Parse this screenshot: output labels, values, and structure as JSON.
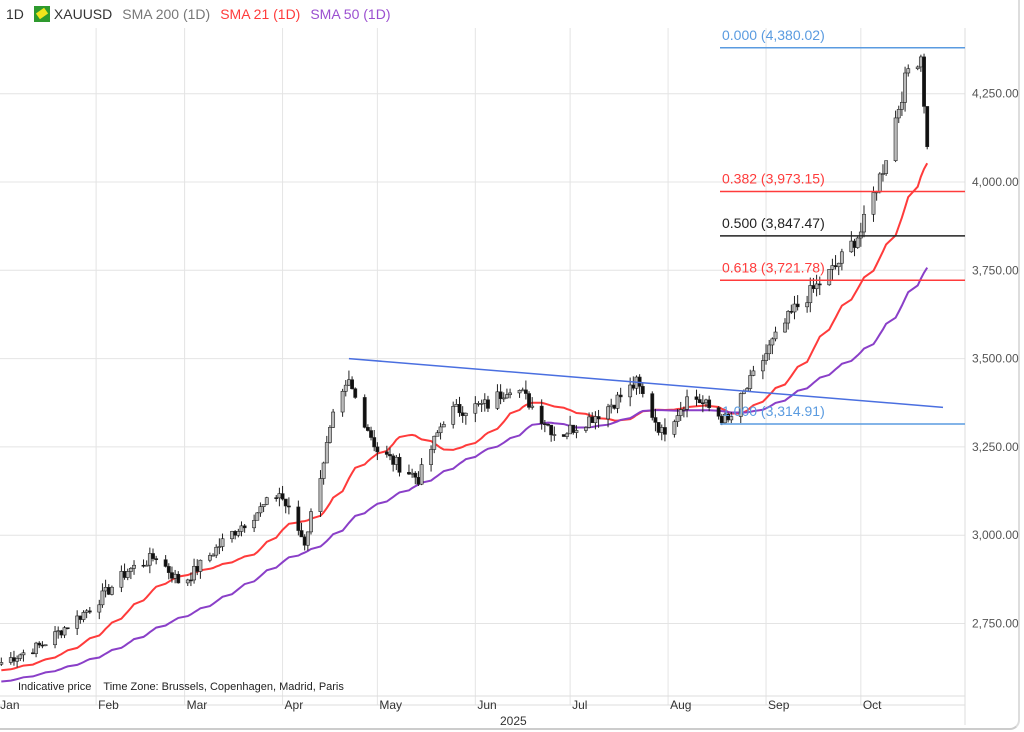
{
  "legend": {
    "interval": "1D",
    "symbol": "XAUUSD",
    "indicators": [
      {
        "label": "SMA 200 (1D)",
        "color": "#777777"
      },
      {
        "label": "SMA 21 (1D)",
        "color": "#ff3b3b"
      },
      {
        "label": "SMA 50 (1D)",
        "color": "#9b4fd0"
      }
    ]
  },
  "footer": {
    "note": "Indicative price    Time Zone: Brussels, Copenhagen, Madrid, Paris",
    "year": "2025"
  },
  "chart_data": {
    "type": "candlestick",
    "title": "XAUUSD 1D",
    "y_ticks": [
      "2,750.00",
      "3,000.00",
      "3,250.00",
      "3,500.00",
      "3,750.00",
      "4,000.00",
      "4,250.00"
    ],
    "y_tick_values": [
      2750,
      3000,
      3250,
      3500,
      3750,
      4000,
      4250
    ],
    "ylim": [
      2560,
      4420
    ],
    "x_ticks": [
      {
        "label": "Jan",
        "day": 1
      },
      {
        "label": "Feb",
        "day": 32
      },
      {
        "label": "Mar",
        "day": 60
      },
      {
        "label": "Apr",
        "day": 91
      },
      {
        "label": "May",
        "day": 121
      },
      {
        "label": "Jun",
        "day": 152
      },
      {
        "label": "Jul",
        "day": 182
      },
      {
        "label": "Aug",
        "day": 213
      },
      {
        "label": "Sep",
        "day": 244
      },
      {
        "label": "Oct",
        "day": 274
      }
    ],
    "price_path": [
      [
        2,
        2640
      ],
      [
        15,
        2690
      ],
      [
        31,
        2800
      ],
      [
        42,
        2900
      ],
      [
        51,
        2940
      ],
      [
        59,
        2860
      ],
      [
        73,
        2990
      ],
      [
        90,
        3120
      ],
      [
        98,
        2980
      ],
      [
        107,
        3330
      ],
      [
        112,
        3430
      ],
      [
        121,
        3240
      ],
      [
        134,
        3160
      ],
      [
        143,
        3350
      ],
      [
        156,
        3370
      ],
      [
        164,
        3430
      ],
      [
        178,
        3280
      ],
      [
        192,
        3350
      ],
      [
        203,
        3430
      ],
      [
        211,
        3290
      ],
      [
        220,
        3400
      ],
      [
        232,
        3320
      ],
      [
        245,
        3530
      ],
      [
        253,
        3640
      ],
      [
        266,
        3760
      ],
      [
        274,
        3860
      ],
      [
        281,
        4040
      ],
      [
        289,
        4320
      ],
      [
        293,
        4360
      ],
      [
        295,
        4100
      ]
    ],
    "series": [
      {
        "name": "SMA 21 (1D)",
        "period": 21,
        "color": "#ff3b3b"
      },
      {
        "name": "SMA 50 (1D)",
        "period": 50,
        "color": "#8a3fc8"
      }
    ],
    "fibonacci": [
      {
        "level": "0.000",
        "price": 4380.02,
        "label": "0.000 (4,380.02)",
        "color": "#5a9be0"
      },
      {
        "level": "0.382",
        "price": 3973.15,
        "label": "0.382 (3,973.15)",
        "color": "#ff3b3b"
      },
      {
        "level": "0.500",
        "price": 3847.47,
        "label": "0.500 (3,847.47)",
        "color": "#222222"
      },
      {
        "level": "0.618",
        "price": 3721.78,
        "label": "0.618 (3,721.78)",
        "color": "#ff3b3b"
      },
      {
        "level": "1.000",
        "price": 3314.91,
        "label": "1.000 (3,314.91)",
        "color": "#5a9be0"
      }
    ],
    "trendline": {
      "from": [
        112,
        3500
      ],
      "to": [
        300,
        3362
      ],
      "color": "#4a6fe0"
    }
  }
}
